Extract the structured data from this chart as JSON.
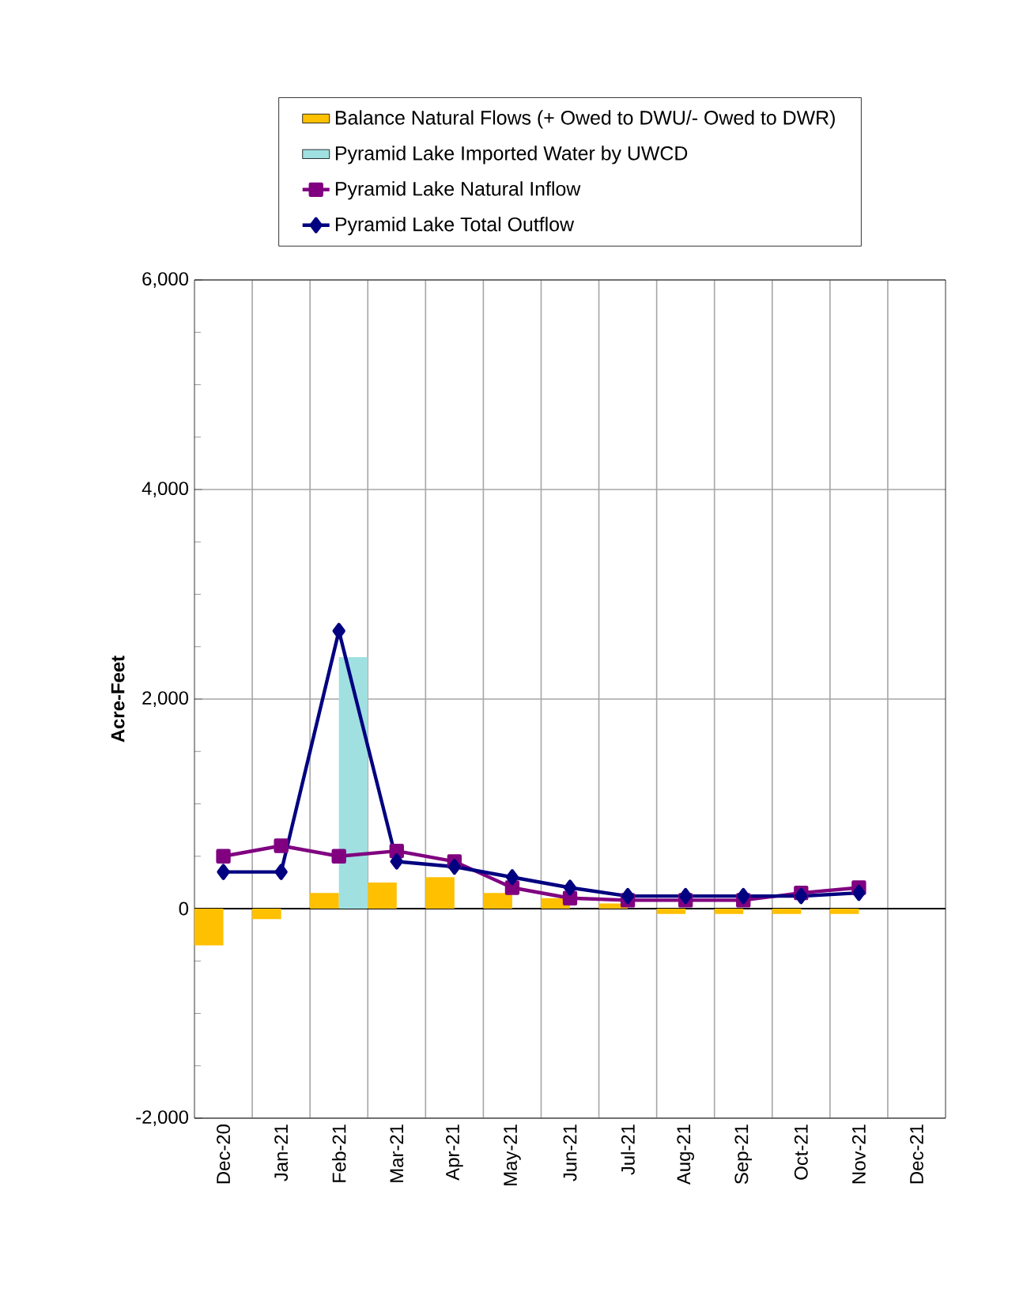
{
  "chart_data": {
    "type": "bar",
    "ylabel": "Acre-Feet",
    "categories": [
      "Dec-20",
      "Jan-21",
      "Feb-21",
      "Mar-21",
      "Apr-21",
      "May-21",
      "Jun-21",
      "Jul-21",
      "Aug-21",
      "Sep-21",
      "Oct-21",
      "Nov-21",
      "Dec-21"
    ],
    "series": [
      {
        "name": "Balance Natural Flows (+ Owed to DWU/- Owed to DWR)",
        "color": "#ffc000",
        "values": [
          -350,
          -100,
          150,
          250,
          300,
          150,
          100,
          50,
          -50,
          -50,
          -50,
          -50,
          null
        ]
      },
      {
        "name": "Pyramid Lake Imported Water by UWCD",
        "color": "#a0e0e0",
        "values": [
          null,
          null,
          2400,
          null,
          null,
          null,
          null,
          null,
          null,
          null,
          null,
          null,
          null
        ]
      },
      {
        "name": "Pyramid Lake Natural Inflow",
        "type": "line",
        "color": "#800080",
        "marker": "square",
        "values": [
          500,
          600,
          500,
          550,
          450,
          200,
          100,
          80,
          80,
          80,
          150,
          200,
          null
        ]
      },
      {
        "name": "Pyramid Lake Total Outflow",
        "type": "line",
        "color": "#000080",
        "marker": "diamond",
        "values": [
          350,
          350,
          2650,
          450,
          400,
          300,
          200,
          120,
          120,
          120,
          120,
          150,
          null
        ]
      }
    ],
    "ylim": [
      -2000,
      6000
    ],
    "yticks": [
      {
        "value": -2000,
        "label": "-2,000"
      },
      {
        "value": -1500,
        "label": null
      },
      {
        "value": -1000,
        "label": null
      },
      {
        "value": -500,
        "label": null
      },
      0,
      {
        "value": 500,
        "label": null
      },
      {
        "value": 1000,
        "label": null
      },
      {
        "value": 1500,
        "label": null
      },
      {
        "value": 2000,
        "label": "2,000"
      },
      {
        "value": 2500,
        "label": null
      },
      {
        "value": 3000,
        "label": null
      },
      {
        "value": 3500,
        "label": null
      },
      {
        "value": 4000,
        "label": "4,000"
      },
      {
        "value": 4500,
        "label": null
      },
      {
        "value": 5000,
        "label": null
      },
      {
        "value": 5500,
        "label": null
      },
      {
        "value": 6000,
        "label": "6,000"
      }
    ],
    "grid": true,
    "legend": "top"
  }
}
